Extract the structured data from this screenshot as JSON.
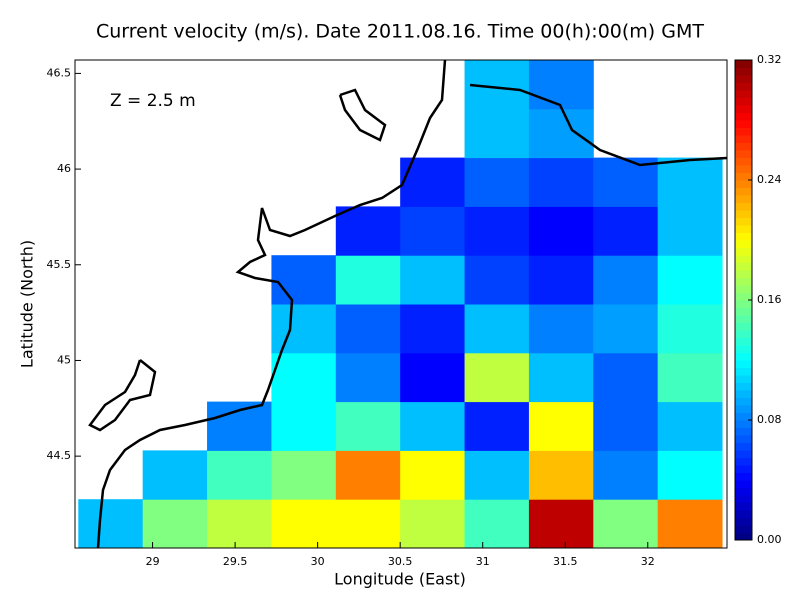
{
  "chart_data": {
    "type": "heatmap",
    "title": "Current velocity (m/s). Date 2011.08.16. Time 00(h):00(m) GMT",
    "annotation": "Z = 2.5 m",
    "x_label": "Longitude (East)",
    "y_label": "Latitude (North)",
    "xlim": [
      28.53,
      32.48
    ],
    "ylim": [
      44.02,
      46.57
    ],
    "xticks": [
      29,
      29.5,
      30,
      30.5,
      31,
      31.5,
      32
    ],
    "yticks": [
      44.5,
      45,
      45.5,
      46,
      46.5
    ],
    "x_edges": [
      28.55,
      28.94,
      29.33,
      29.72,
      30.11,
      30.5,
      30.89,
      31.28,
      31.67,
      32.06,
      32.45
    ],
    "y_edges": [
      44.02,
      44.275,
      44.53,
      44.785,
      45.04,
      45.295,
      45.55,
      45.805,
      46.06,
      46.315,
      46.57
    ],
    "values": [
      [
        0.1,
        0.16,
        0.18,
        0.2,
        0.2,
        0.18,
        0.14,
        0.3,
        0.16,
        0.24
      ],
      [
        null,
        0.1,
        0.14,
        0.16,
        0.24,
        0.2,
        0.1,
        0.22,
        0.08,
        0.12
      ],
      [
        null,
        null,
        0.08,
        0.12,
        0.14,
        0.1,
        0.05,
        0.2,
        0.07,
        0.1
      ],
      [
        null,
        null,
        null,
        0.12,
        0.08,
        0.04,
        0.18,
        0.1,
        0.07,
        0.14
      ],
      [
        null,
        null,
        null,
        0.1,
        0.07,
        0.05,
        0.1,
        0.08,
        0.09,
        0.13
      ],
      [
        null,
        null,
        null,
        0.07,
        0.13,
        0.1,
        0.06,
        0.05,
        0.08,
        0.12
      ],
      [
        null,
        null,
        null,
        null,
        0.05,
        0.06,
        0.05,
        0.04,
        0.05,
        0.1
      ],
      [
        null,
        null,
        null,
        null,
        null,
        0.05,
        0.07,
        0.06,
        0.07,
        0.1
      ],
      [
        null,
        null,
        null,
        null,
        null,
        null,
        0.1,
        0.09,
        null,
        null
      ],
      [
        null,
        null,
        null,
        null,
        null,
        null,
        0.1,
        0.08,
        null,
        null
      ]
    ],
    "colormap": "jet",
    "clim": [
      0,
      0.32
    ],
    "cticks": [
      {
        "value": 0,
        "label": "0.00"
      },
      0.08,
      0.16,
      0.24,
      0.32
    ]
  }
}
